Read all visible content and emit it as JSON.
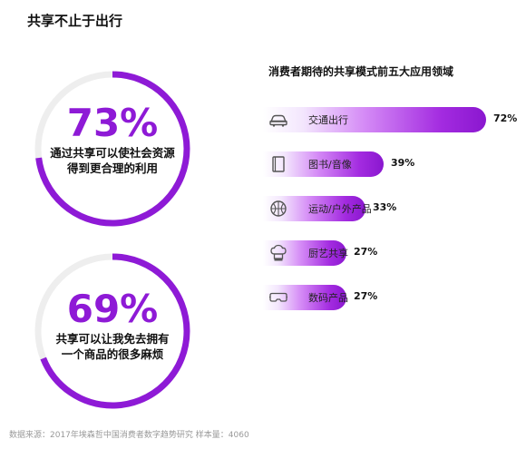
{
  "page_title": "共享不止于出行",
  "stats": [
    {
      "value": "73%",
      "fraction": 0.73,
      "desc_lines": [
        "通过共享可以使社会资源",
        "得到更合理的利用"
      ]
    },
    {
      "value": "69%",
      "fraction": 0.69,
      "desc_lines": [
        "共享可以让我免去拥有",
        "一个商品的很多麻烦"
      ]
    }
  ],
  "chart_data": {
    "type": "bar",
    "title": "消费者期待的共享模式前五大应用领域",
    "categories": [
      "交通出行",
      "图书/音像",
      "运动/户外产品",
      "厨艺共享",
      "数码产品"
    ],
    "values": [
      72,
      39,
      33,
      27,
      27
    ],
    "value_labels": [
      "72%",
      "39%",
      "33%",
      "27%",
      "27%"
    ],
    "icons": [
      "car-icon",
      "book-icon",
      "basketball-icon",
      "chef-hat-icon",
      "vr-goggles-icon"
    ],
    "unit": "%"
  },
  "colors": {
    "accent": "#8e1ad6",
    "track": "#eeeeee"
  },
  "footer": "数据来源：2017年埃森哲中国消费者数字趋势研究 样本量：4060"
}
